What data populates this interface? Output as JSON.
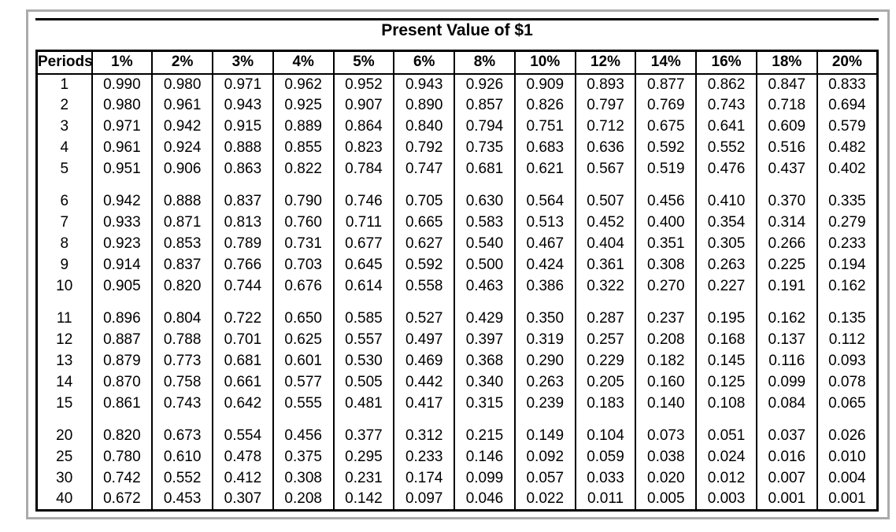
{
  "title": "Present Value of $1",
  "table": {
    "columns": [
      "Periods",
      "1%",
      "2%",
      "3%",
      "4%",
      "5%",
      "6%",
      "8%",
      "10%",
      "12%",
      "14%",
      "16%",
      "18%",
      "20%"
    ],
    "groups": [
      [
        [
          "1",
          "0.990",
          "0.980",
          "0.971",
          "0.962",
          "0.952",
          "0.943",
          "0.926",
          "0.909",
          "0.893",
          "0.877",
          "0.862",
          "0.847",
          "0.833"
        ],
        [
          "2",
          "0.980",
          "0.961",
          "0.943",
          "0.925",
          "0.907",
          "0.890",
          "0.857",
          "0.826",
          "0.797",
          "0.769",
          "0.743",
          "0.718",
          "0.694"
        ],
        [
          "3",
          "0.971",
          "0.942",
          "0.915",
          "0.889",
          "0.864",
          "0.840",
          "0.794",
          "0.751",
          "0.712",
          "0.675",
          "0.641",
          "0.609",
          "0.579"
        ],
        [
          "4",
          "0.961",
          "0.924",
          "0.888",
          "0.855",
          "0.823",
          "0.792",
          "0.735",
          "0.683",
          "0.636",
          "0.592",
          "0.552",
          "0.516",
          "0.482"
        ],
        [
          "5",
          "0.951",
          "0.906",
          "0.863",
          "0.822",
          "0.784",
          "0.747",
          "0.681",
          "0.621",
          "0.567",
          "0.519",
          "0.476",
          "0.437",
          "0.402"
        ]
      ],
      [
        [
          "6",
          "0.942",
          "0.888",
          "0.837",
          "0.790",
          "0.746",
          "0.705",
          "0.630",
          "0.564",
          "0.507",
          "0.456",
          "0.410",
          "0.370",
          "0.335"
        ],
        [
          "7",
          "0.933",
          "0.871",
          "0.813",
          "0.760",
          "0.711",
          "0.665",
          "0.583",
          "0.513",
          "0.452",
          "0.400",
          "0.354",
          "0.314",
          "0.279"
        ],
        [
          "8",
          "0.923",
          "0.853",
          "0.789",
          "0.731",
          "0.677",
          "0.627",
          "0.540",
          "0.467",
          "0.404",
          "0.351",
          "0.305",
          "0.266",
          "0.233"
        ],
        [
          "9",
          "0.914",
          "0.837",
          "0.766",
          "0.703",
          "0.645",
          "0.592",
          "0.500",
          "0.424",
          "0.361",
          "0.308",
          "0.263",
          "0.225",
          "0.194"
        ],
        [
          "10",
          "0.905",
          "0.820",
          "0.744",
          "0.676",
          "0.614",
          "0.558",
          "0.463",
          "0.386",
          "0.322",
          "0.270",
          "0.227",
          "0.191",
          "0.162"
        ]
      ],
      [
        [
          "11",
          "0.896",
          "0.804",
          "0.722",
          "0.650",
          "0.585",
          "0.527",
          "0.429",
          "0.350",
          "0.287",
          "0.237",
          "0.195",
          "0.162",
          "0.135"
        ],
        [
          "12",
          "0.887",
          "0.788",
          "0.701",
          "0.625",
          "0.557",
          "0.497",
          "0.397",
          "0.319",
          "0.257",
          "0.208",
          "0.168",
          "0.137",
          "0.112"
        ],
        [
          "13",
          "0.879",
          "0.773",
          "0.681",
          "0.601",
          "0.530",
          "0.469",
          "0.368",
          "0.290",
          "0.229",
          "0.182",
          "0.145",
          "0.116",
          "0.093"
        ],
        [
          "14",
          "0.870",
          "0.758",
          "0.661",
          "0.577",
          "0.505",
          "0.442",
          "0.340",
          "0.263",
          "0.205",
          "0.160",
          "0.125",
          "0.099",
          "0.078"
        ],
        [
          "15",
          "0.861",
          "0.743",
          "0.642",
          "0.555",
          "0.481",
          "0.417",
          "0.315",
          "0.239",
          "0.183",
          "0.140",
          "0.108",
          "0.084",
          "0.065"
        ]
      ],
      [
        [
          "20",
          "0.820",
          "0.673",
          "0.554",
          "0.456",
          "0.377",
          "0.312",
          "0.215",
          "0.149",
          "0.104",
          "0.073",
          "0.051",
          "0.037",
          "0.026"
        ],
        [
          "25",
          "0.780",
          "0.610",
          "0.478",
          "0.375",
          "0.295",
          "0.233",
          "0.146",
          "0.092",
          "0.059",
          "0.038",
          "0.024",
          "0.016",
          "0.010"
        ],
        [
          "30",
          "0.742",
          "0.552",
          "0.412",
          "0.308",
          "0.231",
          "0.174",
          "0.099",
          "0.057",
          "0.033",
          "0.020",
          "0.012",
          "0.007",
          "0.004"
        ],
        [
          "40",
          "0.672",
          "0.453",
          "0.307",
          "0.208",
          "0.142",
          "0.097",
          "0.046",
          "0.022",
          "0.011",
          "0.005",
          "0.003",
          "0.001",
          "0.001"
        ]
      ]
    ]
  },
  "colors": {
    "frame_border": "#ababab",
    "grid_line": "#000000",
    "background": "#ffffff",
    "text": "#000000"
  }
}
